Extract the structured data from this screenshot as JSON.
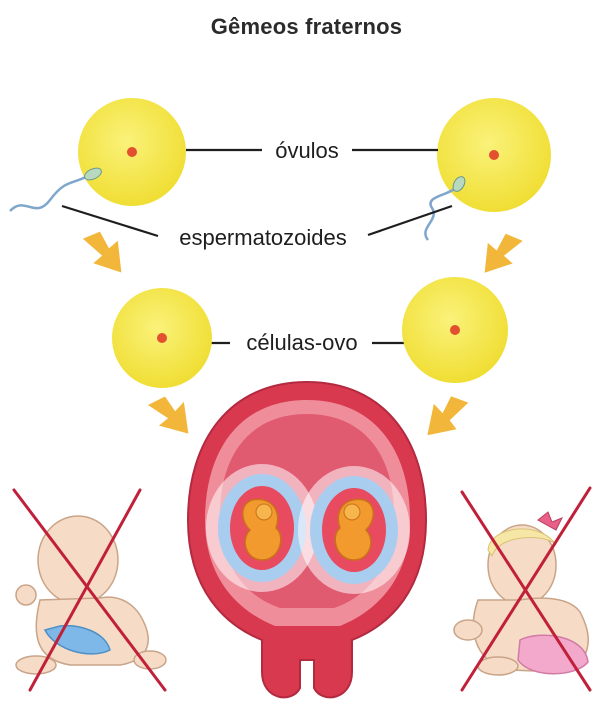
{
  "title": "Gêmeos fraternos",
  "labels": {
    "ovules": "óvulos",
    "sperm": "espermatozoides",
    "zygotes": "células-ovo"
  },
  "colors": {
    "cell_fill": "#f4e84a",
    "cell_nucleus": "#e2502f",
    "arrow": "#f2b73a",
    "uterus": "#d8394f",
    "uterus_inner": "#f08d9a",
    "amniotic": "#a9cdef",
    "embryo": "#f29a2e",
    "cross": "#c0203a",
    "sperm": "#8fb5d6"
  },
  "babies": [
    {
      "description": "boy-baby",
      "crossed": true
    },
    {
      "description": "girl-baby",
      "crossed": true
    }
  ]
}
